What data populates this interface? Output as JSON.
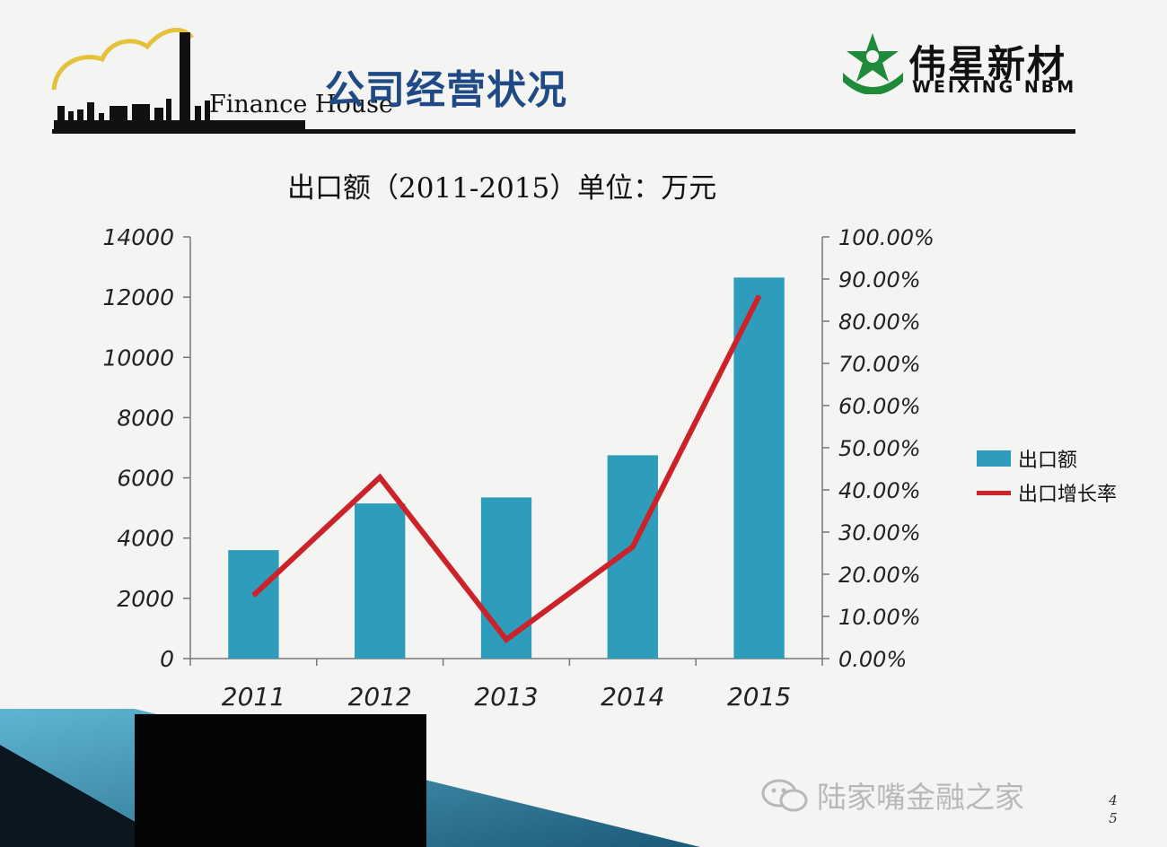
{
  "header": {
    "left_logo_text": "Finance House",
    "slide_title": "公司经营状况",
    "brand_cn": "伟星新材",
    "brand_en": "WEIXING NBM"
  },
  "chart_title": "出口额（2011-2015）单位：万元",
  "chart_data": {
    "type": "bar",
    "categories": [
      "2011",
      "2012",
      "2013",
      "2014",
      "2015"
    ],
    "series": [
      {
        "name": "出口额",
        "type": "bar",
        "axis": "left",
        "values": [
          3600,
          5150,
          5350,
          6750,
          12650
        ]
      },
      {
        "name": "出口增长率",
        "type": "line",
        "axis": "right",
        "values": [
          15.0,
          43.0,
          4.5,
          26.5,
          86.0
        ]
      }
    ],
    "left_axis": {
      "min": 0,
      "max": 14000,
      "ticks": [
        "0",
        "2000",
        "4000",
        "6000",
        "8000",
        "10000",
        "12000",
        "14000"
      ]
    },
    "right_axis": {
      "min": 0,
      "max": 100,
      "ticks": [
        "0.00%",
        "10.00%",
        "20.00%",
        "30.00%",
        "40.00%",
        "50.00%",
        "60.00%",
        "70.00%",
        "80.00%",
        "90.00%",
        "100.00%"
      ]
    },
    "colors": {
      "bar": "#2d9dbb",
      "line": "#cc2229"
    },
    "legend_position": "right",
    "grid": false
  },
  "footer": {
    "watermark": "陆家嘴金融之家",
    "page_number": "45"
  }
}
